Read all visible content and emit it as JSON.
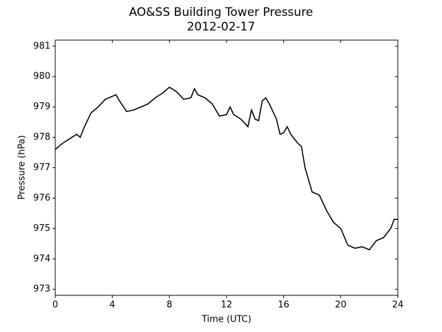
{
  "chart_data": {
    "type": "line",
    "title": "AO&SS Building Tower Pressure",
    "subtitle": "2012-02-17",
    "x_label": "Time (UTC)",
    "y_label": "Pressure (hPa)",
    "xlim": [
      0,
      24
    ],
    "xticks": [
      0,
      4,
      8,
      12,
      16,
      20,
      24
    ],
    "ylim": [
      972.8,
      981.2
    ],
    "yticks": [
      973,
      974,
      975,
      976,
      977,
      978,
      979,
      980,
      981
    ],
    "series": [
      {
        "color": "#000000",
        "x": [
          0,
          0.5,
          1,
          1.5,
          1.75,
          2,
          2.5,
          3,
          3.5,
          4,
          4.25,
          4.5,
          5,
          5.5,
          6,
          6.5,
          7,
          7.5,
          8,
          8.5,
          9,
          9.5,
          9.75,
          10,
          10.5,
          11,
          11.5,
          12,
          12.25,
          12.5,
          13,
          13.5,
          13.75,
          14,
          14.25,
          14.5,
          14.75,
          15,
          15.5,
          15.75,
          16,
          16.25,
          16.5,
          17,
          17.25,
          17.5,
          18,
          18.5,
          19,
          19.5,
          20,
          20.5,
          21,
          21.5,
          22,
          22.5,
          23,
          23.5,
          23.75,
          24
        ],
        "values": [
          977.6,
          977.8,
          977.95,
          978.1,
          978.0,
          978.3,
          978.8,
          979.0,
          979.25,
          979.35,
          979.4,
          979.2,
          978.85,
          978.9,
          979.0,
          979.1,
          979.3,
          979.45,
          979.65,
          979.5,
          979.25,
          979.3,
          979.6,
          979.4,
          979.3,
          979.1,
          978.7,
          978.75,
          979.0,
          978.75,
          978.6,
          978.35,
          978.9,
          978.6,
          978.55,
          979.2,
          979.3,
          979.1,
          978.6,
          978.1,
          978.15,
          978.35,
          978.1,
          977.8,
          977.7,
          977.0,
          976.2,
          976.1,
          975.6,
          975.2,
          975.0,
          974.45,
          974.35,
          974.4,
          974.3,
          974.6,
          974.7,
          975.0,
          975.3,
          975.3
        ]
      }
    ]
  }
}
